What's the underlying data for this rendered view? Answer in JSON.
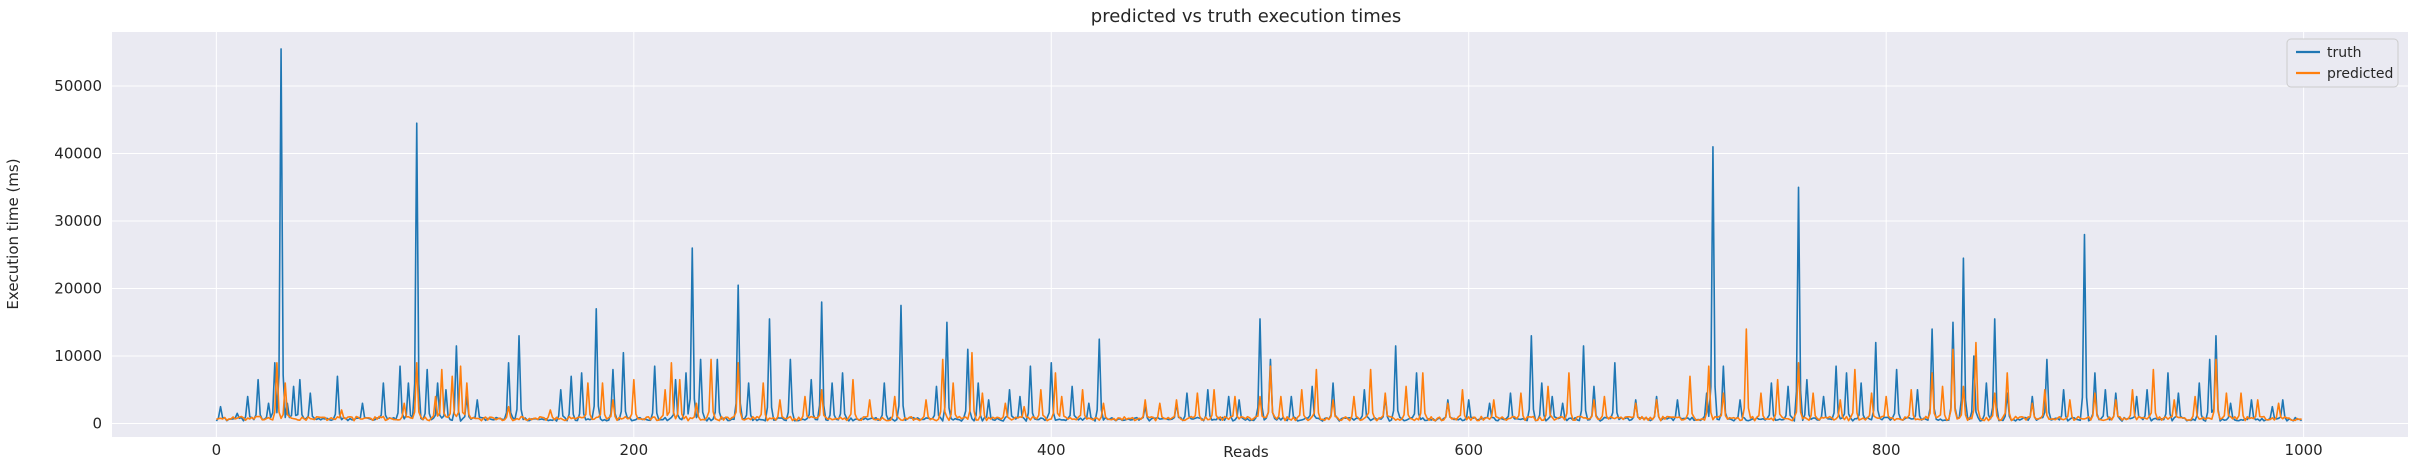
{
  "chart_data": {
    "type": "line",
    "title": "predicted vs truth execution times",
    "xlabel": "Reads",
    "ylabel": "Execution time (ms)",
    "xlim": [
      -50,
      1050
    ],
    "ylim": [
      -2000,
      58000
    ],
    "x_ticks": [
      0,
      200,
      400,
      600,
      800,
      1000
    ],
    "x_tick_labels": [
      "0",
      "200",
      "400",
      "600",
      "800",
      "1000"
    ],
    "y_ticks": [
      0,
      10000,
      20000,
      30000,
      40000,
      50000
    ],
    "y_tick_labels": [
      "0",
      "10000",
      "20000",
      "30000",
      "40000",
      "50000"
    ],
    "grid": true,
    "legend_position": "top-right",
    "x_range": [
      0,
      999
    ],
    "series": [
      {
        "name": "truth",
        "color": "#1f77b4",
        "baseline": 600,
        "peaks": [
          [
            2,
            2500
          ],
          [
            10,
            1500
          ],
          [
            15,
            4000
          ],
          [
            20,
            6500
          ],
          [
            25,
            3000
          ],
          [
            28,
            9000
          ],
          [
            31,
            55500
          ],
          [
            34,
            3000
          ],
          [
            37,
            5500
          ],
          [
            40,
            6500
          ],
          [
            45,
            4500
          ],
          [
            58,
            7000
          ],
          [
            70,
            3000
          ],
          [
            80,
            6000
          ],
          [
            88,
            8500
          ],
          [
            92,
            6000
          ],
          [
            96,
            44500
          ],
          [
            101,
            8000
          ],
          [
            106,
            6000
          ],
          [
            110,
            5000
          ],
          [
            115,
            11500
          ],
          [
            120,
            4000
          ],
          [
            125,
            3500
          ],
          [
            140,
            9000
          ],
          [
            145,
            13000
          ],
          [
            165,
            5000
          ],
          [
            170,
            7000
          ],
          [
            175,
            7500
          ],
          [
            182,
            17000
          ],
          [
            190,
            8000
          ],
          [
            195,
            10500
          ],
          [
            210,
            8500
          ],
          [
            220,
            6500
          ],
          [
            225,
            7500
          ],
          [
            228,
            26000
          ],
          [
            232,
            9500
          ],
          [
            240,
            9500
          ],
          [
            250,
            20500
          ],
          [
            255,
            6000
          ],
          [
            265,
            15500
          ],
          [
            275,
            9500
          ],
          [
            285,
            6500
          ],
          [
            290,
            18000
          ],
          [
            295,
            6000
          ],
          [
            300,
            7500
          ],
          [
            320,
            6000
          ],
          [
            328,
            17500
          ],
          [
            345,
            5500
          ],
          [
            350,
            15000
          ],
          [
            360,
            11000
          ],
          [
            365,
            6000
          ],
          [
            370,
            3500
          ],
          [
            380,
            5000
          ],
          [
            385,
            4000
          ],
          [
            390,
            8500
          ],
          [
            400,
            9000
          ],
          [
            410,
            5500
          ],
          [
            418,
            3000
          ],
          [
            423,
            12500
          ],
          [
            445,
            2500
          ],
          [
            460,
            3000
          ],
          [
            465,
            4500
          ],
          [
            475,
            5000
          ],
          [
            485,
            4000
          ],
          [
            490,
            3500
          ],
          [
            500,
            15500
          ],
          [
            505,
            9500
          ],
          [
            515,
            4000
          ],
          [
            525,
            5500
          ],
          [
            535,
            6000
          ],
          [
            550,
            5000
          ],
          [
            560,
            4000
          ],
          [
            565,
            11500
          ],
          [
            575,
            7500
          ],
          [
            590,
            3500
          ],
          [
            600,
            3500
          ],
          [
            610,
            3000
          ],
          [
            620,
            4500
          ],
          [
            630,
            13000
          ],
          [
            635,
            6000
          ],
          [
            640,
            4000
          ],
          [
            645,
            3000
          ],
          [
            655,
            11500
          ],
          [
            660,
            5500
          ],
          [
            670,
            9000
          ],
          [
            680,
            3500
          ],
          [
            690,
            4000
          ],
          [
            700,
            3500
          ],
          [
            714,
            4500
          ],
          [
            717,
            41000
          ],
          [
            722,
            8500
          ],
          [
            730,
            3500
          ],
          [
            745,
            6000
          ],
          [
            753,
            5500
          ],
          [
            758,
            35000
          ],
          [
            762,
            6500
          ],
          [
            770,
            4000
          ],
          [
            776,
            8500
          ],
          [
            781,
            7500
          ],
          [
            788,
            6000
          ],
          [
            795,
            12000
          ],
          [
            805,
            8000
          ],
          [
            815,
            5000
          ],
          [
            822,
            14000
          ],
          [
            832,
            15000
          ],
          [
            837,
            24500
          ],
          [
            842,
            10000
          ],
          [
            848,
            6000
          ],
          [
            852,
            15500
          ],
          [
            858,
            4500
          ],
          [
            870,
            4000
          ],
          [
            877,
            9500
          ],
          [
            885,
            5000
          ],
          [
            895,
            28000
          ],
          [
            900,
            7500
          ],
          [
            905,
            5000
          ],
          [
            910,
            4500
          ],
          [
            920,
            4000
          ],
          [
            925,
            5000
          ],
          [
            935,
            7500
          ],
          [
            940,
            4500
          ],
          [
            950,
            6000
          ],
          [
            955,
            9500
          ],
          [
            958,
            13000
          ],
          [
            965,
            3000
          ],
          [
            975,
            3500
          ],
          [
            985,
            2500
          ],
          [
            990,
            3500
          ]
        ]
      },
      {
        "name": "predicted",
        "color": "#ff7f0e",
        "baseline": 700,
        "peaks": [
          [
            29,
            9000
          ],
          [
            33,
            6000
          ],
          [
            60,
            2000
          ],
          [
            90,
            3000
          ],
          [
            96,
            9000
          ],
          [
            105,
            4000
          ],
          [
            108,
            8000
          ],
          [
            113,
            7000
          ],
          [
            117,
            8500
          ],
          [
            120,
            6000
          ],
          [
            140,
            2500
          ],
          [
            160,
            2000
          ],
          [
            178,
            6000
          ],
          [
            185,
            6000
          ],
          [
            190,
            3500
          ],
          [
            200,
            6500
          ],
          [
            215,
            5000
          ],
          [
            218,
            9000
          ],
          [
            222,
            6500
          ],
          [
            230,
            3000
          ],
          [
            237,
            9500
          ],
          [
            250,
            9000
          ],
          [
            262,
            6000
          ],
          [
            270,
            3500
          ],
          [
            282,
            4000
          ],
          [
            290,
            5000
          ],
          [
            305,
            6500
          ],
          [
            313,
            3500
          ],
          [
            325,
            4000
          ],
          [
            340,
            3500
          ],
          [
            348,
            9500
          ],
          [
            353,
            6000
          ],
          [
            362,
            10500
          ],
          [
            367,
            4500
          ],
          [
            378,
            3000
          ],
          [
            387,
            2500
          ],
          [
            395,
            5000
          ],
          [
            402,
            7500
          ],
          [
            405,
            4000
          ],
          [
            415,
            5000
          ],
          [
            425,
            3000
          ],
          [
            445,
            3500
          ],
          [
            452,
            3000
          ],
          [
            460,
            3500
          ],
          [
            470,
            4500
          ],
          [
            478,
            5000
          ],
          [
            488,
            4000
          ],
          [
            500,
            4000
          ],
          [
            505,
            8500
          ],
          [
            510,
            4000
          ],
          [
            520,
            5000
          ],
          [
            527,
            8000
          ],
          [
            535,
            3500
          ],
          [
            545,
            4000
          ],
          [
            553,
            8000
          ],
          [
            560,
            4500
          ],
          [
            570,
            5500
          ],
          [
            578,
            7500
          ],
          [
            590,
            3000
          ],
          [
            597,
            5000
          ],
          [
            612,
            3500
          ],
          [
            625,
            4500
          ],
          [
            638,
            5500
          ],
          [
            648,
            7500
          ],
          [
            660,
            3500
          ],
          [
            665,
            4000
          ],
          [
            680,
            3000
          ],
          [
            690,
            3500
          ],
          [
            706,
            7000
          ],
          [
            715,
            8500
          ],
          [
            722,
            4500
          ],
          [
            733,
            14000
          ],
          [
            740,
            4500
          ],
          [
            748,
            6500
          ],
          [
            758,
            9000
          ],
          [
            765,
            4500
          ],
          [
            778,
            3500
          ],
          [
            785,
            8000
          ],
          [
            793,
            4500
          ],
          [
            800,
            4000
          ],
          [
            812,
            5000
          ],
          [
            822,
            7500
          ],
          [
            827,
            5500
          ],
          [
            832,
            11000
          ],
          [
            837,
            5500
          ],
          [
            843,
            12000
          ],
          [
            852,
            4500
          ],
          [
            858,
            7500
          ],
          [
            870,
            3000
          ],
          [
            876,
            5000
          ],
          [
            888,
            3500
          ],
          [
            900,
            4500
          ],
          [
            910,
            3500
          ],
          [
            918,
            5000
          ],
          [
            928,
            8000
          ],
          [
            938,
            3500
          ],
          [
            948,
            4000
          ],
          [
            958,
            9500
          ],
          [
            963,
            4500
          ],
          [
            970,
            4500
          ],
          [
            978,
            3500
          ],
          [
            988,
            3000
          ]
        ]
      }
    ]
  }
}
